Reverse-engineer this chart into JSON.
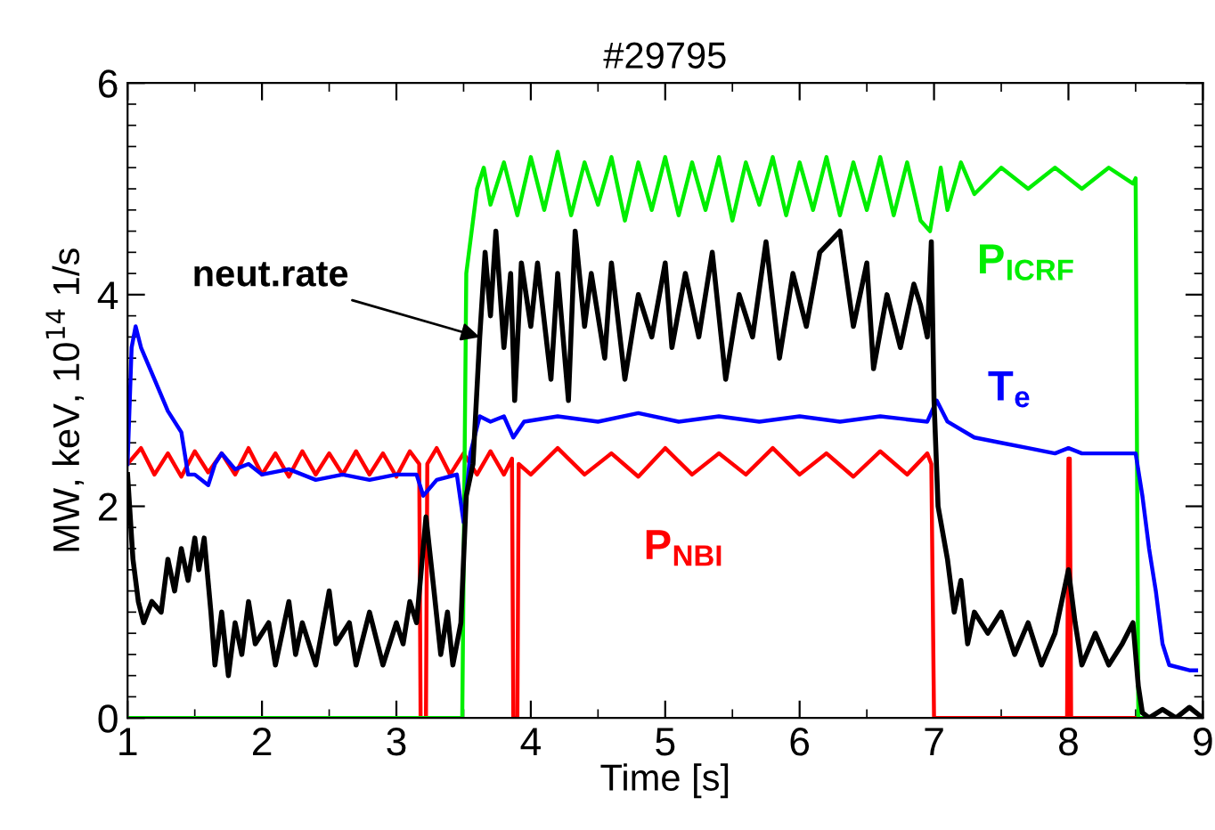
{
  "chart_data": {
    "type": "line",
    "title": "#29795",
    "xlabel": "Time [s]",
    "ylabel": "MW, keV, 10$^{14}$ 1/s",
    "xlim": [
      1,
      9
    ],
    "ylim": [
      0,
      6
    ],
    "xticks": [
      1,
      2,
      3,
      4,
      5,
      6,
      7,
      8,
      9
    ],
    "yticks": [
      0,
      2,
      4,
      6
    ],
    "grid": false,
    "legend": false,
    "marker": "none",
    "line_style": "solid",
    "series": [
      {
        "name": "P$_{NBI}$",
        "color": "#ff0000",
        "x": [
          1.0,
          1.1,
          1.2,
          1.3,
          1.4,
          1.5,
          1.6,
          1.7,
          1.8,
          1.9,
          2.0,
          2.1,
          2.2,
          2.3,
          2.4,
          2.5,
          2.6,
          2.7,
          2.8,
          2.9,
          3.0,
          3.1,
          3.17,
          3.18,
          3.22,
          3.23,
          3.3,
          3.4,
          3.5,
          3.6,
          3.7,
          3.8,
          3.86,
          3.87,
          3.9,
          3.91,
          4.0,
          4.2,
          4.4,
          4.6,
          4.8,
          5.0,
          5.2,
          5.4,
          5.6,
          5.8,
          6.0,
          6.2,
          6.4,
          6.6,
          6.8,
          6.95,
          6.98,
          7.0,
          7.99,
          8.0,
          8.01,
          8.02,
          8.5
        ],
        "values": [
          2.4,
          2.55,
          2.3,
          2.5,
          2.28,
          2.52,
          2.32,
          2.5,
          2.3,
          2.55,
          2.3,
          2.5,
          2.28,
          2.52,
          2.3,
          2.5,
          2.3,
          2.52,
          2.3,
          2.5,
          2.28,
          2.52,
          2.4,
          0,
          0,
          2.4,
          2.55,
          2.3,
          2.5,
          2.3,
          2.52,
          2.3,
          2.45,
          0,
          0,
          2.4,
          2.3,
          2.55,
          2.3,
          2.5,
          2.28,
          2.55,
          2.3,
          2.5,
          2.3,
          2.55,
          2.3,
          2.5,
          2.28,
          2.52,
          2.3,
          2.5,
          2.4,
          0,
          0,
          2.45,
          2.45,
          0,
          0
        ]
      },
      {
        "name": "P$_{ICRF}$",
        "color": "#00ee00",
        "x": [
          1.0,
          3.49,
          3.52,
          3.56,
          3.6,
          3.65,
          3.7,
          3.8,
          3.9,
          4.0,
          4.1,
          4.2,
          4.3,
          4.4,
          4.5,
          4.6,
          4.7,
          4.8,
          4.9,
          5.0,
          5.1,
          5.2,
          5.3,
          5.4,
          5.5,
          5.6,
          5.7,
          5.8,
          5.9,
          6.0,
          6.1,
          6.2,
          6.3,
          6.4,
          6.5,
          6.6,
          6.7,
          6.8,
          6.9,
          6.97,
          7.05,
          7.1,
          7.2,
          7.3,
          7.5,
          7.7,
          7.9,
          8.1,
          8.3,
          8.48,
          8.5,
          8.52,
          8.6
        ],
        "values": [
          0,
          0,
          4.2,
          4.6,
          5.0,
          5.2,
          4.85,
          5.25,
          4.75,
          5.3,
          4.8,
          5.35,
          4.75,
          5.25,
          4.85,
          5.3,
          4.7,
          5.25,
          4.8,
          5.3,
          4.75,
          5.25,
          4.8,
          5.3,
          4.7,
          5.25,
          4.85,
          5.3,
          4.75,
          5.25,
          4.8,
          5.3,
          4.75,
          5.25,
          4.8,
          5.3,
          4.75,
          5.25,
          4.7,
          4.6,
          5.2,
          4.8,
          5.25,
          4.95,
          5.2,
          5.0,
          5.2,
          5.0,
          5.2,
          5.05,
          5.1,
          0,
          0
        ]
      },
      {
        "name": "T$_{e}$",
        "color": "#0000ff",
        "x": [
          1.0,
          1.03,
          1.06,
          1.1,
          1.2,
          1.3,
          1.4,
          1.45,
          1.5,
          1.6,
          1.65,
          1.7,
          1.8,
          1.9,
          2.0,
          2.2,
          2.4,
          2.6,
          2.8,
          3.0,
          3.15,
          3.2,
          3.3,
          3.45,
          3.5,
          3.55,
          3.62,
          3.7,
          3.8,
          3.87,
          3.95,
          4.2,
          4.5,
          4.8,
          5.1,
          5.4,
          5.7,
          6.0,
          6.3,
          6.6,
          6.95,
          7.02,
          7.1,
          7.3,
          7.5,
          7.7,
          7.9,
          8.0,
          8.1,
          8.3,
          8.5,
          8.55,
          8.6,
          8.65,
          8.7,
          8.75,
          8.9,
          8.95
        ],
        "values": [
          2.4,
          3.5,
          3.7,
          3.5,
          3.2,
          2.9,
          2.7,
          2.3,
          2.3,
          2.2,
          2.4,
          2.5,
          2.35,
          2.4,
          2.3,
          2.35,
          2.25,
          2.3,
          2.25,
          2.3,
          2.3,
          2.1,
          2.25,
          2.3,
          1.85,
          2.5,
          2.85,
          2.8,
          2.85,
          2.65,
          2.8,
          2.85,
          2.8,
          2.88,
          2.8,
          2.85,
          2.8,
          2.85,
          2.8,
          2.85,
          2.8,
          3.0,
          2.8,
          2.65,
          2.6,
          2.55,
          2.5,
          2.55,
          2.5,
          2.5,
          2.5,
          2.1,
          1.6,
          1.2,
          0.7,
          0.5,
          0.45,
          0.45
        ]
      },
      {
        "name": "neut.rate",
        "color": "#000000",
        "x": [
          1.0,
          1.04,
          1.08,
          1.12,
          1.18,
          1.25,
          1.3,
          1.35,
          1.4,
          1.45,
          1.5,
          1.53,
          1.57,
          1.62,
          1.65,
          1.7,
          1.75,
          1.8,
          1.85,
          1.9,
          1.95,
          2.05,
          2.1,
          2.2,
          2.25,
          2.3,
          2.4,
          2.5,
          2.55,
          2.65,
          2.7,
          2.8,
          2.9,
          3.0,
          3.05,
          3.1,
          3.15,
          3.22,
          3.28,
          3.33,
          3.38,
          3.42,
          3.48,
          3.52,
          3.57,
          3.62,
          3.66,
          3.7,
          3.74,
          3.8,
          3.85,
          3.88,
          3.93,
          4.0,
          4.05,
          4.15,
          4.2,
          4.28,
          4.33,
          4.4,
          4.45,
          4.55,
          4.6,
          4.7,
          4.8,
          4.9,
          5.0,
          5.05,
          5.15,
          5.25,
          5.35,
          5.45,
          5.55,
          5.65,
          5.75,
          5.85,
          5.95,
          6.05,
          6.15,
          6.3,
          6.4,
          6.5,
          6.55,
          6.65,
          6.75,
          6.85,
          6.9,
          6.95,
          6.98,
          7.0,
          7.03,
          7.1,
          7.15,
          7.2,
          7.25,
          7.3,
          7.4,
          7.5,
          7.6,
          7.7,
          7.8,
          7.9,
          7.95,
          8.0,
          8.05,
          8.1,
          8.2,
          8.3,
          8.4,
          8.48,
          8.52,
          8.55,
          8.6,
          8.7,
          8.8,
          8.9,
          9.0
        ],
        "values": [
          2.3,
          1.5,
          1.1,
          0.9,
          1.1,
          1.0,
          1.5,
          1.2,
          1.6,
          1.3,
          1.7,
          1.4,
          1.7,
          1.0,
          0.5,
          1.0,
          0.4,
          0.9,
          0.6,
          1.1,
          0.7,
          0.9,
          0.5,
          1.1,
          0.6,
          0.9,
          0.5,
          1.2,
          0.7,
          0.9,
          0.5,
          1.0,
          0.5,
          0.9,
          0.7,
          1.1,
          0.9,
          1.9,
          1.2,
          0.6,
          1.0,
          0.5,
          0.9,
          2.1,
          2.4,
          3.6,
          4.4,
          3.8,
          4.6,
          3.5,
          4.2,
          3.0,
          4.3,
          3.7,
          4.3,
          3.2,
          4.2,
          3.0,
          4.6,
          3.7,
          4.2,
          3.4,
          4.3,
          3.2,
          4.0,
          3.6,
          4.3,
          3.5,
          4.2,
          3.6,
          4.4,
          3.2,
          4.0,
          3.6,
          4.5,
          3.4,
          4.2,
          3.7,
          4.4,
          4.6,
          3.7,
          4.3,
          3.3,
          4.0,
          3.5,
          4.1,
          3.9,
          3.6,
          4.5,
          3.0,
          2.0,
          1.5,
          1.0,
          1.3,
          0.7,
          1.0,
          0.8,
          1.0,
          0.6,
          0.9,
          0.5,
          0.8,
          1.1,
          1.4,
          0.9,
          0.5,
          0.8,
          0.5,
          0.7,
          0.9,
          0.3,
          0.05,
          0.0,
          0.08,
          0.0,
          0.1,
          0.0
        ]
      }
    ]
  }
}
